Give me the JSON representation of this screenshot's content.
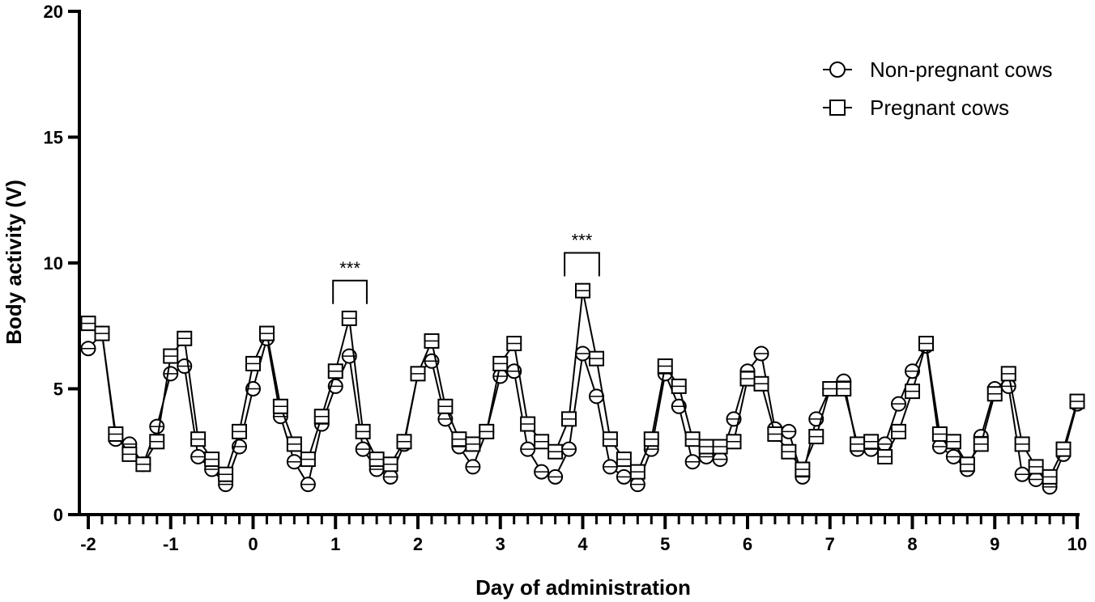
{
  "chart_data": {
    "type": "line",
    "xlabel": "Day of administration",
    "ylabel": "Body activity (V)",
    "xlim": [
      -2,
      10
    ],
    "ylim": [
      0,
      20
    ],
    "x_ticks": [
      -2,
      -1,
      0,
      1,
      2,
      3,
      4,
      5,
      6,
      7,
      8,
      9,
      10
    ],
    "x_tick_labels": [
      "-2",
      "-1",
      "0",
      "1",
      "2",
      "3",
      "4",
      "5",
      "6",
      "7",
      "8",
      "9",
      "10"
    ],
    "y_ticks": [
      0,
      5,
      10,
      15,
      20
    ],
    "y_tick_labels": [
      "0",
      "5",
      "10",
      "15",
      "20"
    ],
    "minor_x_step": 0.1667,
    "legend_position": "top-right",
    "grid": false,
    "x": [
      -2.0,
      -1.833,
      -1.667,
      -1.5,
      -1.333,
      -1.167,
      -1.0,
      -0.833,
      -0.667,
      -0.5,
      -0.333,
      -0.167,
      0.0,
      0.167,
      0.333,
      0.5,
      0.667,
      0.833,
      1.0,
      1.167,
      1.333,
      1.5,
      1.667,
      1.833,
      2.0,
      2.167,
      2.333,
      2.5,
      2.667,
      2.833,
      3.0,
      3.167,
      3.333,
      3.5,
      3.667,
      3.833,
      4.0,
      4.167,
      4.333,
      4.5,
      4.667,
      4.833,
      5.0,
      5.167,
      5.333,
      5.5,
      5.667,
      5.833,
      6.0,
      6.167,
      6.333,
      6.5,
      6.667,
      6.833,
      7.0,
      7.167,
      7.333,
      7.5,
      7.667,
      7.833,
      8.0,
      8.167,
      8.333,
      8.5,
      8.667,
      8.833,
      9.0,
      9.167,
      9.333,
      9.5,
      9.667,
      9.833,
      10.0
    ],
    "series": [
      {
        "name": "Non-pregnant cows",
        "marker": "circle",
        "values": [
          6.6,
          7.2,
          3.0,
          2.8,
          2.0,
          3.5,
          5.6,
          5.9,
          2.3,
          1.8,
          1.2,
          2.7,
          5.0,
          7.0,
          3.9,
          2.1,
          1.2,
          3.6,
          5.1,
          6.3,
          2.6,
          1.8,
          1.5,
          2.8,
          5.6,
          6.1,
          3.8,
          2.7,
          1.9,
          3.3,
          5.5,
          5.7,
          2.6,
          1.7,
          1.5,
          2.6,
          6.4,
          4.7,
          1.9,
          1.5,
          1.2,
          2.6,
          5.6,
          4.3,
          2.1,
          2.3,
          2.2,
          3.8,
          5.7,
          6.4,
          3.4,
          3.3,
          1.5,
          3.8,
          5.0,
          5.3,
          2.6,
          2.6,
          2.8,
          4.4,
          5.7,
          6.7,
          2.7,
          2.3,
          1.8,
          3.1,
          5.0,
          5.1,
          1.6,
          1.4,
          1.1,
          2.4,
          4.4
        ]
      },
      {
        "name": "Pregnant cows",
        "marker": "square",
        "values": [
          7.6,
          7.2,
          3.2,
          2.4,
          2.0,
          2.9,
          6.3,
          7.0,
          3.0,
          2.2,
          1.6,
          3.3,
          6.0,
          7.2,
          4.3,
          2.8,
          2.2,
          3.9,
          5.7,
          7.8,
          3.3,
          2.2,
          2.0,
          2.9,
          5.6,
          6.9,
          4.3,
          3.0,
          2.8,
          3.3,
          6.0,
          6.8,
          3.6,
          2.9,
          2.5,
          3.8,
          8.9,
          6.2,
          3.0,
          2.2,
          1.7,
          3.0,
          5.9,
          5.1,
          3.0,
          2.7,
          2.7,
          2.9,
          5.4,
          5.2,
          3.2,
          2.5,
          1.8,
          3.1,
          5.0,
          5.0,
          2.8,
          2.9,
          2.3,
          3.3,
          4.9,
          6.8,
          3.2,
          2.9,
          2.0,
          2.8,
          4.8,
          5.6,
          2.8,
          1.9,
          1.5,
          2.6,
          4.5
        ]
      }
    ],
    "annotations": [
      {
        "label": "***",
        "x_start": 0.97,
        "x_end": 1.38,
        "y": 9.3
      },
      {
        "label": "***",
        "x_start": 3.78,
        "x_end": 4.2,
        "y": 10.4
      }
    ]
  }
}
